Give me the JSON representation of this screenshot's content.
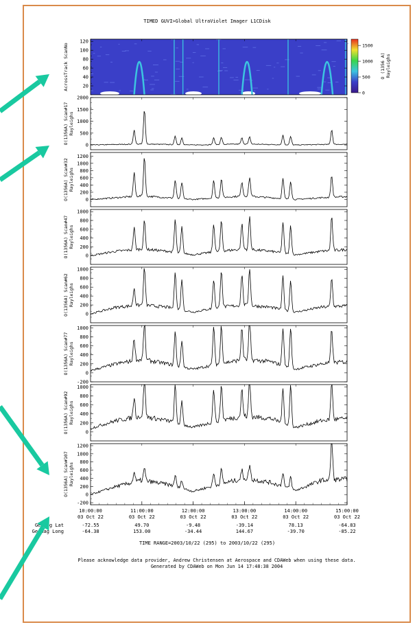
{
  "title": "TIMED  GUVI>Global UltraViolet Imager  L1CDisk",
  "colorbar": {
    "ticks": [
      "1500",
      "1000",
      "500",
      "0"
    ],
    "tick_values": [
      1500,
      1000,
      500,
      0
    ],
    "label_line1": "O (1356 A)",
    "label_line2": "Rayleighs"
  },
  "panels": [
    {
      "label1": "AcrossTrack ScanNo",
      "label2": "",
      "ticks": [
        "120",
        "100",
        "80",
        "60",
        "40",
        "20"
      ],
      "tick_values": [
        120,
        100,
        80,
        60,
        40,
        20
      ],
      "ylim": [
        0,
        125
      ],
      "kind": "spectrogram"
    },
    {
      "label1": "O(1356A) Scan#17",
      "label2": "Rayleighs",
      "ticks": [
        "2000",
        "1500",
        "1000",
        "500",
        "0"
      ],
      "tick_values": [
        2000,
        1500,
        1000,
        500,
        0
      ],
      "ylim": [
        -200,
        2000
      ],
      "kind": "line"
    },
    {
      "label1": "O(1356A) Scan#32",
      "label2": "Rayleighs",
      "ticks": [
        "1200",
        "1000",
        "800",
        "600",
        "400",
        "200",
        "0"
      ],
      "tick_values": [
        1200,
        1000,
        800,
        600,
        400,
        200,
        0
      ],
      "ylim": [
        -200,
        1300
      ],
      "kind": "line"
    },
    {
      "label1": "O(1356A) Scan#47",
      "label2": "Rayleighs",
      "ticks": [
        "1000",
        "800",
        "600",
        "400",
        "200",
        "0"
      ],
      "tick_values": [
        1000,
        800,
        600,
        400,
        200,
        0
      ],
      "ylim": [
        -200,
        1050
      ],
      "kind": "line"
    },
    {
      "label1": "O(1356A) Scan#62",
      "label2": "Rayleighs",
      "ticks": [
        "1000",
        "800",
        "600",
        "400",
        "200",
        "0"
      ],
      "tick_values": [
        1000,
        800,
        600,
        400,
        200,
        0
      ],
      "ylim": [
        -200,
        1050
      ],
      "kind": "line"
    },
    {
      "label1": "O(1356A) Scan#77",
      "label2": "Rayleighs",
      "ticks": [
        "1000",
        "800",
        "600",
        "400",
        "200",
        "0",
        "-200"
      ],
      "tick_values": [
        1000,
        800,
        600,
        400,
        200,
        0,
        -200
      ],
      "ylim": [
        -200,
        1050
      ],
      "kind": "line"
    },
    {
      "label1": "O(1356A) Scan#92",
      "label2": "Rayleighs",
      "ticks": [
        "1000",
        "800",
        "600",
        "400",
        "200",
        "0"
      ],
      "tick_values": [
        1000,
        800,
        600,
        400,
        200,
        0
      ],
      "ylim": [
        -200,
        1050
      ],
      "kind": "line"
    },
    {
      "label1": "O(1356A) Scan#107",
      "label2": "Rayleighs",
      "ticks": [
        "1200",
        "1000",
        "800",
        "600",
        "400",
        "200",
        "0",
        "-200"
      ],
      "tick_values": [
        1200,
        1000,
        800,
        600,
        400,
        200,
        0,
        -200
      ],
      "ylim": [
        -250,
        1250
      ],
      "kind": "line"
    }
  ],
  "time_ticks": [
    {
      "time": "10:00:00",
      "date": "03 Oct 22",
      "lat": "-72.55",
      "long": "-64.38"
    },
    {
      "time": "11:00:00",
      "date": "03 Oct 22",
      "lat": "49.70",
      "long": "153.00"
    },
    {
      "time": "12:00:00",
      "date": "03 Oct 22",
      "lat": "-9.48",
      "long": "-34.44"
    },
    {
      "time": "13:00:00",
      "date": "03 Oct 22",
      "lat": "-39.14",
      "long": "144.67"
    },
    {
      "time": "14:00:00",
      "date": "03 Oct 22",
      "lat": "78.13",
      "long": "-39.70"
    },
    {
      "time": "15:00:00",
      "date": "03 Oct 22",
      "lat": "-64.83",
      "long": "-85.22"
    }
  ],
  "row_labels": {
    "lat": "Geomag Lat",
    "long": "Geomag Long"
  },
  "time_range": "TIME RANGE=2003/10/22 (295) to 2003/10/22 (295)",
  "ack_line1": "Please acknowledge data provider, Andrew Christensen at Aerospace and CDAWeb when using these data.",
  "ack_line2": "Generated by CDAWeb on Mon Jun 14 17:48:38 2004",
  "colors": {
    "frame": "#d98a4a",
    "arrow": "#19c9a0",
    "line": "#000000",
    "spectro_bg": "#3a3fc8",
    "spectro_band": "#3cc4e0"
  },
  "chart_data": {
    "type": "line",
    "title": "TIMED  GUVI>Global UltraViolet Imager  L1CDisk",
    "x": [
      "10:00:00",
      "11:00:00",
      "12:00:00",
      "13:00:00",
      "14:00:00",
      "15:00:00"
    ],
    "xlim": [
      "10:00:00",
      "15:00:00"
    ],
    "peaks_hours": [
      10.85,
      11.05,
      11.65,
      11.78,
      12.4,
      12.55,
      12.95,
      13.1,
      13.75,
      13.9,
      14.55,
      14.7
    ],
    "series": [
      {
        "name": "O(1356A) Scan#17",
        "baseline": [
          0,
          20,
          40,
          20,
          0,
          20,
          40,
          20,
          0,
          20,
          30
        ],
        "peak_values": [
          600,
          1450,
          350,
          300,
          280,
          300,
          260,
          300,
          400,
          350,
          0,
          620
        ]
      },
      {
        "name": "O(1356A) Scan#32",
        "baseline": [
          0,
          50,
          100,
          50,
          0,
          50,
          100,
          50,
          0,
          50,
          80
        ],
        "peak_values": [
          650,
          1100,
          500,
          450,
          480,
          520,
          400,
          520,
          550,
          500,
          0,
          600
        ]
      },
      {
        "name": "O(1356A) Scan#47",
        "baseline": [
          0,
          100,
          150,
          100,
          20,
          100,
          150,
          100,
          20,
          100,
          140
        ],
        "peak_values": [
          500,
          650,
          750,
          600,
          650,
          700,
          580,
          750,
          700,
          650,
          0,
          780
        ]
      },
      {
        "name": "O(1356A) Scan#62",
        "baseline": [
          0,
          150,
          200,
          150,
          40,
          150,
          200,
          150,
          40,
          150,
          180
        ],
        "peak_values": [
          400,
          850,
          850,
          700,
          650,
          850,
          700,
          850,
          750,
          700,
          0,
          650
        ]
      },
      {
        "name": "O(1356A) Scan#77",
        "baseline": [
          50,
          200,
          300,
          200,
          80,
          200,
          300,
          250,
          80,
          200,
          250
        ],
        "peak_values": [
          500,
          800,
          750,
          600,
          850,
          850,
          700,
          900,
          850,
          900,
          0,
          750
        ]
      },
      {
        "name": "O(1356A) Scan#92",
        "baseline": [
          80,
          250,
          350,
          250,
          100,
          250,
          350,
          300,
          100,
          250,
          300
        ],
        "peak_values": [
          450,
          850,
          850,
          500,
          750,
          800,
          600,
          850,
          750,
          900,
          0,
          850
        ]
      },
      {
        "name": "O(1356A) Scan#107",
        "baseline": [
          0,
          200,
          350,
          250,
          80,
          250,
          400,
          300,
          100,
          350,
          380
        ],
        "peak_values": [
          250,
          300,
          280,
          200,
          300,
          350,
          200,
          350,
          350,
          300,
          0,
          1050
        ]
      }
    ]
  }
}
